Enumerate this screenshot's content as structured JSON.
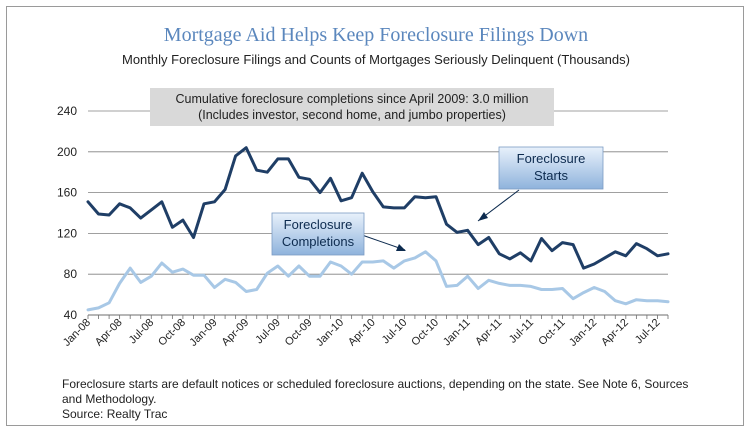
{
  "chart_data": {
    "type": "line",
    "title": "Mortgage Aid Helps Keep Foreclosure Filings Down",
    "subtitle": "Monthly Foreclosure Filings and Counts of Mortgages Seriously Delinquent (Thousands)",
    "annotation": {
      "line1": "Cumulative foreclosure completions since April 2009: 3.0 million",
      "line2": "(Includes investor, second home, and jumbo properties)"
    },
    "ylim": [
      40,
      240
    ],
    "yticks": [
      40,
      80,
      120,
      160,
      200,
      240
    ],
    "x": [
      "Jan-08",
      "Feb-08",
      "Mar-08",
      "Apr-08",
      "May-08",
      "Jun-08",
      "Jul-08",
      "Aug-08",
      "Sep-08",
      "Oct-08",
      "Nov-08",
      "Dec-08",
      "Jan-09",
      "Feb-09",
      "Mar-09",
      "Apr-09",
      "May-09",
      "Jun-09",
      "Jul-09",
      "Aug-09",
      "Sep-09",
      "Oct-09",
      "Nov-09",
      "Dec-09",
      "Jan-10",
      "Feb-10",
      "Mar-10",
      "Apr-10",
      "May-10",
      "Jun-10",
      "Jul-10",
      "Aug-10",
      "Sep-10",
      "Oct-10",
      "Nov-10",
      "Dec-10",
      "Jan-11",
      "Feb-11",
      "Mar-11",
      "Apr-11",
      "May-11",
      "Jun-11",
      "Jul-11",
      "Aug-11",
      "Sep-11",
      "Oct-11",
      "Nov-11",
      "Dec-11",
      "Jan-12",
      "Feb-12",
      "Mar-12",
      "Apr-12",
      "May-12",
      "Jun-12",
      "Jul-12",
      "Aug-12"
    ],
    "xtick_labels": [
      "Jan-08",
      "Apr-08",
      "Jul-08",
      "Oct-08",
      "Jan-09",
      "Apr-09",
      "Jul-09",
      "Oct-09",
      "Jan-10",
      "Apr-10",
      "Jul-10",
      "Oct-10",
      "Jan-11",
      "Apr-11",
      "Jul-11",
      "Oct-11",
      "Jan-12",
      "Apr-12",
      "Jul-12"
    ],
    "grid": true,
    "series": [
      {
        "name": "Foreclosure Starts",
        "color": "#1f3e66",
        "values": [
          151,
          139,
          138,
          149,
          145,
          135,
          143,
          151,
          126,
          133,
          116,
          149,
          151,
          163,
          196,
          204,
          182,
          180,
          193,
          193,
          175,
          173,
          160,
          174,
          152,
          155,
          179,
          161,
          146,
          145,
          145,
          156,
          155,
          156,
          129,
          121,
          123,
          109,
          116,
          100,
          95,
          101,
          93,
          115,
          103,
          111,
          109,
          86,
          90,
          96,
          102,
          98,
          110,
          105,
          98,
          100
        ]
      },
      {
        "name": "Foreclosure Completions",
        "color": "#a8c8e6",
        "values": [
          45,
          47,
          52,
          71,
          86,
          72,
          78,
          91,
          82,
          85,
          79,
          79,
          67,
          75,
          72,
          63,
          65,
          81,
          88,
          78,
          88,
          78,
          78,
          92,
          88,
          80,
          92,
          92,
          93,
          86,
          93,
          96,
          102,
          93,
          68,
          69,
          78,
          66,
          74,
          71,
          69,
          69,
          68,
          65,
          65,
          66,
          56,
          62,
          67,
          63,
          54,
          51,
          55,
          54,
          54,
          53
        ]
      }
    ]
  },
  "footnote": {
    "line1": "Foreclosure starts are default notices or scheduled foreclosure auctions, depending on the state. See Note 6, Sources",
    "line2": "and Methodology.",
    "line3": "Source: Realty Trac"
  },
  "callouts": {
    "starts": [
      "Foreclosure",
      "Starts"
    ],
    "completions": [
      "Foreclosure",
      "Completions"
    ]
  }
}
